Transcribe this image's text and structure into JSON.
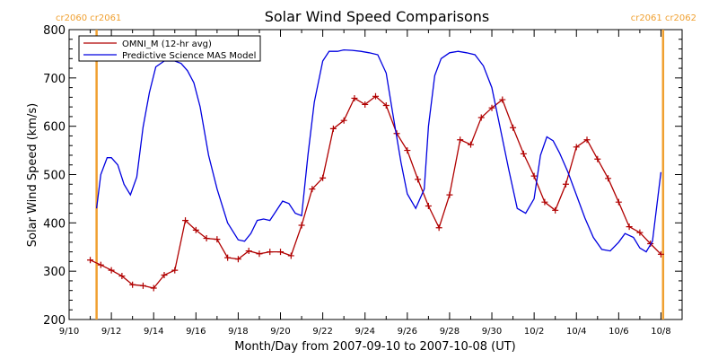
{
  "chart_data": {
    "type": "line",
    "title": "Solar Wind Speed Comparisons",
    "xlabel": "Month/Day from 2007-09-10 to 2007-10-08 (UT)",
    "ylabel": "Solar Wind Speed (km/s)",
    "xlim": [
      0,
      29
    ],
    "ylim": [
      200,
      800
    ],
    "yticks": [
      200,
      300,
      400,
      500,
      600,
      700,
      800
    ],
    "xticks": [
      {
        "x": 0,
        "label": "9/10"
      },
      {
        "x": 2,
        "label": "9/12"
      },
      {
        "x": 4,
        "label": "9/14"
      },
      {
        "x": 6,
        "label": "9/16"
      },
      {
        "x": 8,
        "label": "9/18"
      },
      {
        "x": 10,
        "label": "9/20"
      },
      {
        "x": 12,
        "label": "9/22"
      },
      {
        "x": 14,
        "label": "9/24"
      },
      {
        "x": 16,
        "label": "9/26"
      },
      {
        "x": 18,
        "label": "9/28"
      },
      {
        "x": 20,
        "label": "9/30"
      },
      {
        "x": 22,
        "label": "10/2"
      },
      {
        "x": 24,
        "label": "10/4"
      },
      {
        "x": 26,
        "label": "10/6"
      },
      {
        "x": 28,
        "label": "10/8"
      }
    ],
    "vlines": [
      {
        "x": 1.3,
        "color": "#f0a030",
        "label": "cr2060 cr2061",
        "align": "left"
      },
      {
        "x": 28.1,
        "color": "#f0a030",
        "label": "cr2061 cr2062",
        "align": "right"
      }
    ],
    "legend_position": "top-left",
    "series": [
      {
        "name": "OMNI_M (12-hr avg)",
        "color": "#b00000",
        "marker": "plus",
        "x": [
          1.0,
          1.5,
          2.0,
          2.5,
          3.0,
          3.5,
          4.0,
          4.5,
          5.0,
          5.5,
          6.0,
          6.5,
          7.0,
          7.5,
          8.0,
          8.5,
          9.0,
          9.5,
          10.0,
          10.5,
          11.0,
          11.5,
          12.0,
          12.5,
          13.0,
          13.5,
          14.0,
          14.5,
          15.0,
          15.5,
          16.0,
          16.5,
          17.0,
          17.5,
          18.0,
          18.5,
          19.0,
          19.5,
          20.0,
          20.5,
          21.0,
          21.5,
          22.0,
          22.5,
          23.0,
          23.5,
          24.0,
          24.5,
          25.0,
          25.5,
          26.0,
          26.5,
          27.0,
          27.5,
          28.0
        ],
        "y": [
          323,
          313,
          302,
          290,
          272,
          270,
          265,
          292,
          302,
          405,
          385,
          368,
          366,
          328,
          325,
          342,
          336,
          340,
          340,
          332,
          395,
          470,
          493,
          595,
          612,
          658,
          645,
          662,
          643,
          585,
          550,
          490,
          435,
          390,
          458,
          572,
          562,
          618,
          638,
          655,
          597,
          543,
          497,
          443,
          426,
          480,
          557,
          572,
          532,
          492,
          443,
          392,
          380,
          357,
          335
        ]
      },
      {
        "name": "Predictive Science MAS Model",
        "color": "#0000e0",
        "marker": "none",
        "x": [
          1.3,
          1.5,
          1.8,
          2.0,
          2.3,
          2.6,
          2.9,
          3.2,
          3.5,
          3.8,
          4.1,
          4.5,
          5.0,
          5.3,
          5.6,
          5.9,
          6.2,
          6.6,
          7.0,
          7.5,
          8.0,
          8.3,
          8.6,
          8.9,
          9.2,
          9.5,
          9.8,
          10.1,
          10.4,
          10.7,
          11.0,
          11.3,
          11.6,
          12.0,
          12.3,
          12.7,
          13.0,
          13.4,
          13.8,
          14.2,
          14.6,
          15.0,
          15.3,
          15.7,
          16.0,
          16.4,
          16.8,
          17.0,
          17.3,
          17.6,
          18.0,
          18.4,
          18.8,
          19.2,
          19.6,
          20.0,
          20.4,
          20.8,
          21.2,
          21.6,
          22.0,
          22.3,
          22.6,
          22.9,
          23.2,
          23.6,
          24.0,
          24.4,
          24.8,
          25.2,
          25.6,
          26.0,
          26.3,
          26.7,
          27.0,
          27.3,
          27.6,
          28.0
        ],
        "y": [
          430,
          500,
          535,
          535,
          520,
          480,
          458,
          495,
          598,
          670,
          723,
          735,
          735,
          730,
          715,
          690,
          640,
          540,
          470,
          400,
          365,
          362,
          378,
          405,
          408,
          405,
          425,
          445,
          440,
          420,
          415,
          540,
          650,
          735,
          755,
          755,
          758,
          757,
          755,
          752,
          748,
          710,
          630,
          525,
          460,
          430,
          470,
          600,
          705,
          740,
          752,
          755,
          752,
          748,
          725,
          680,
          595,
          510,
          430,
          420,
          450,
          540,
          578,
          570,
          545,
          505,
          458,
          410,
          370,
          345,
          342,
          360,
          378,
          370,
          348,
          340,
          362,
          505
        ]
      }
    ]
  }
}
